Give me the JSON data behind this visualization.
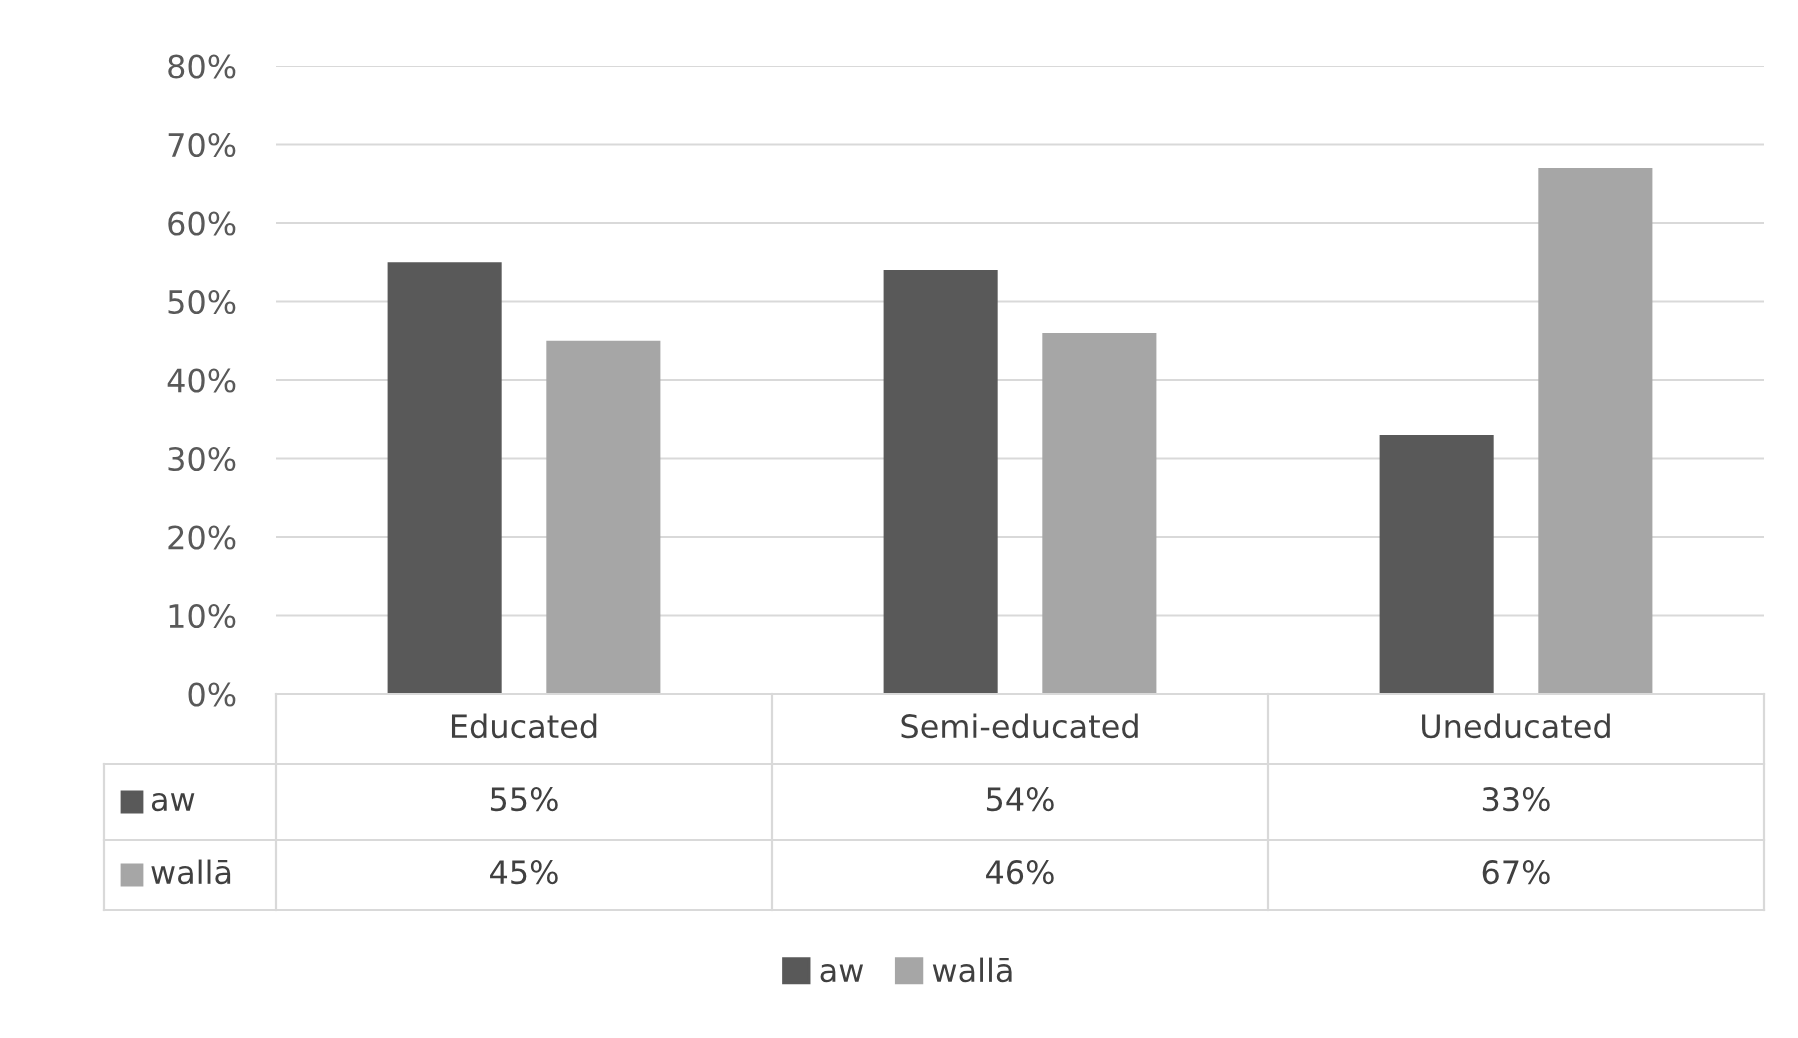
{
  "chart_data": {
    "type": "bar",
    "categories": [
      "Educated",
      "Semi-educated",
      "Uneducated"
    ],
    "series": [
      {
        "name": "aw",
        "color": "#595959",
        "values": [
          55,
          54,
          33
        ],
        "value_labels": [
          "55%",
          "54%",
          "33%"
        ]
      },
      {
        "name": "wallā",
        "color": "#a6a6a6",
        "values": [
          45,
          46,
          67
        ],
        "value_labels": [
          "45%",
          "46%",
          "67%"
        ]
      }
    ],
    "ylim": [
      0,
      80
    ],
    "yticks": [
      {
        "value": 0,
        "label": "0%"
      },
      {
        "value": 10,
        "label": "10%"
      },
      {
        "value": 20,
        "label": "20%"
      },
      {
        "value": 30,
        "label": "30%"
      },
      {
        "value": 40,
        "label": "40%"
      },
      {
        "value": 50,
        "label": "50%"
      },
      {
        "value": 60,
        "label": "60%"
      },
      {
        "value": 70,
        "label": "70%"
      },
      {
        "value": 80,
        "label": "80%"
      }
    ],
    "grid": "y",
    "legend": "bottom"
  }
}
